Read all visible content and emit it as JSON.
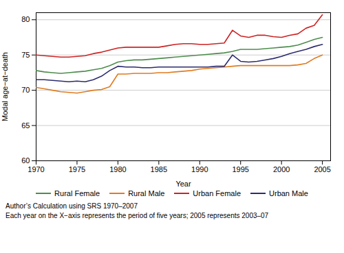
{
  "chart_data": {
    "type": "line",
    "x": [
      1970,
      1971,
      1972,
      1973,
      1974,
      1975,
      1976,
      1977,
      1978,
      1979,
      1980,
      1981,
      1982,
      1983,
      1984,
      1985,
      1986,
      1987,
      1988,
      1989,
      1990,
      1991,
      1992,
      1993,
      1994,
      1995,
      1996,
      1997,
      1998,
      1999,
      2000,
      2001,
      2002,
      2003,
      2004,
      2005
    ],
    "series": [
      {
        "name": "Rural Female",
        "color": "#4d8c4d",
        "values": [
          72.8,
          72.6,
          72.5,
          72.4,
          72.5,
          72.6,
          72.7,
          72.9,
          73.1,
          73.5,
          74.0,
          74.2,
          74.3,
          74.3,
          74.4,
          74.5,
          74.6,
          74.7,
          74.8,
          74.9,
          75.0,
          75.1,
          75.2,
          75.3,
          75.5,
          75.8,
          75.8,
          75.8,
          75.9,
          76.0,
          76.1,
          76.2,
          76.4,
          76.8,
          77.2,
          77.5
        ]
      },
      {
        "name": "Rural Male",
        "color": "#e07b20",
        "values": [
          70.4,
          70.2,
          70.0,
          69.8,
          69.7,
          69.6,
          69.8,
          70.0,
          70.1,
          70.5,
          72.3,
          72.3,
          72.4,
          72.4,
          72.4,
          72.5,
          72.5,
          72.6,
          72.7,
          72.8,
          73.0,
          73.1,
          73.2,
          73.3,
          73.4,
          73.5,
          73.5,
          73.5,
          73.5,
          73.5,
          73.5,
          73.5,
          73.6,
          73.8,
          74.5,
          75.0
        ]
      },
      {
        "name": "Urban Female",
        "color": "#cc2222",
        "values": [
          75.0,
          74.9,
          74.8,
          74.7,
          74.7,
          74.8,
          74.9,
          75.2,
          75.4,
          75.7,
          76.0,
          76.1,
          76.1,
          76.1,
          76.1,
          76.1,
          76.3,
          76.5,
          76.6,
          76.6,
          76.5,
          76.5,
          76.6,
          76.7,
          78.5,
          77.7,
          77.5,
          77.8,
          77.8,
          77.6,
          77.5,
          77.8,
          78.0,
          78.8,
          79.2,
          80.7
        ]
      },
      {
        "name": "Urban Male",
        "color": "#2b2b6e",
        "values": [
          71.5,
          71.5,
          71.4,
          71.3,
          71.2,
          71.3,
          71.2,
          71.5,
          72.0,
          72.8,
          73.4,
          73.3,
          73.3,
          73.2,
          73.2,
          73.3,
          73.3,
          73.3,
          73.3,
          73.3,
          73.3,
          73.3,
          73.4,
          73.4,
          75.0,
          74.1,
          74.0,
          74.1,
          74.3,
          74.5,
          74.8,
          75.2,
          75.5,
          75.8,
          76.2,
          76.5
        ]
      }
    ],
    "xlabel": "Year",
    "ylabel": "Modal age−at−death",
    "xlim": [
      1970,
      2006
    ],
    "ylim": [
      60,
      81
    ],
    "xticks": [
      1970,
      1975,
      1980,
      1985,
      1990,
      1995,
      2000,
      2005
    ],
    "yticks": [
      60,
      65,
      70,
      75,
      80
    ],
    "grid": true,
    "legend": "bottom",
    "annotations": [
      "Author’s Calculation using SRS 1970–2007",
      "Each year on the X−axis represents the period of five years; 2005 represents 2003–07"
    ]
  }
}
